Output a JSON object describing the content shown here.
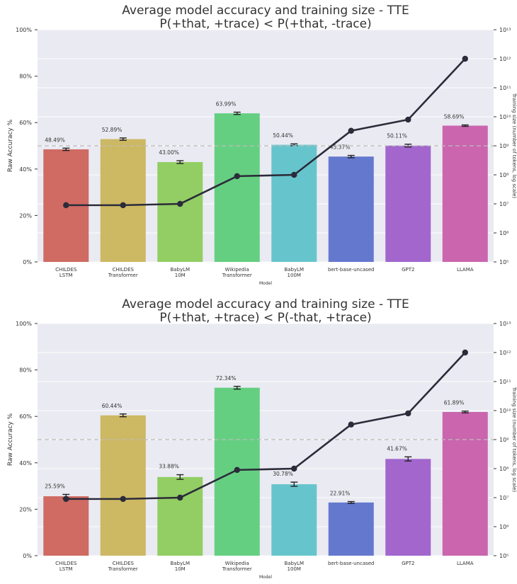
{
  "colors": {
    "plot_background": "#eaeaf2",
    "grid": "#ffffff",
    "line": "#2b2b3a",
    "reference_line": "#bdbdbd",
    "bars": [
      "#cf6b63",
      "#cdb863",
      "#92ce63",
      "#65cf81",
      "#66c5cc",
      "#6478ce",
      "#a266cd",
      "#ca65ae"
    ]
  },
  "chart_data": [
    {
      "type": "bar",
      "title": "Average model accuracy and training size - TTE",
      "subtitle": "P(+that, +trace) < P(+that, -trace)",
      "xlabel": "Model",
      "ylabel": "Raw Accuracy %",
      "y2label": "Training size (number of tokens, log scale)",
      "y2scale": "log",
      "ylim": [
        0,
        100
      ],
      "y2lim": [
        100000,
        10000000000000
      ],
      "yticks": [
        "0%",
        "20%",
        "40%",
        "60%",
        "80%",
        "100%"
      ],
      "y2ticks": [
        "10⁵",
        "10⁶",
        "10⁷",
        "10⁸",
        "10⁹",
        "10¹⁰",
        "10¹¹",
        "10¹²",
        "10¹³"
      ],
      "grid": true,
      "reference_line": 50,
      "categories": [
        [
          "CHILDES",
          "LSTM"
        ],
        [
          "CHILDES",
          "Transformer"
        ],
        [
          "BabyLM",
          "10M"
        ],
        [
          "Wikipedia",
          "Transformer"
        ],
        [
          "BabyLM",
          "100M"
        ],
        [
          "bert-base-uncased"
        ],
        [
          "GPT2"
        ],
        [
          "LLAMA"
        ]
      ],
      "accuracy_values": [
        48.49,
        52.89,
        43.0,
        63.99,
        50.44,
        45.37,
        50.11,
        58.69
      ],
      "accuracy_labels": [
        "48.49%",
        "52.89%",
        "43.00%",
        "63.99%",
        "50.44%",
        "45.37%",
        "50.11%",
        "58.69%"
      ],
      "error_bars": [
        0.5,
        0.5,
        0.6,
        0.5,
        0.4,
        0.5,
        0.6,
        0.3
      ],
      "training_size": [
        9000000,
        9000000,
        10000000,
        90000000,
        100000000,
        3300000000,
        8000000000,
        1000000000000
      ]
    },
    {
      "type": "bar",
      "title": "Average model accuracy and training size - TTE",
      "subtitle": "P(+that, +trace) < P(-that, +trace)",
      "xlabel": "Model",
      "ylabel": "Raw Accuracy %",
      "y2label": "Training size (number of tokens, log scale)",
      "y2scale": "log",
      "ylim": [
        0,
        100
      ],
      "y2lim": [
        100000,
        10000000000000
      ],
      "yticks": [
        "0%",
        "20%",
        "40%",
        "60%",
        "80%",
        "100%"
      ],
      "y2ticks": [
        "10⁵",
        "10⁶",
        "10⁷",
        "10⁸",
        "10⁹",
        "10¹⁰",
        "10¹¹",
        "10¹²",
        "10¹³"
      ],
      "grid": true,
      "reference_line": 50,
      "categories": [
        [
          "CHILDES",
          "LSTM"
        ],
        [
          "CHILDES",
          "Transformer"
        ],
        [
          "BabyLM",
          "10M"
        ],
        [
          "Wikipedia",
          "Transformer"
        ],
        [
          "BabyLM",
          "100M"
        ],
        [
          "bert-base-uncased"
        ],
        [
          "GPT2"
        ],
        [
          "LLAMA"
        ]
      ],
      "accuracy_values": [
        25.59,
        60.44,
        33.88,
        72.34,
        30.78,
        22.91,
        41.67,
        61.89
      ],
      "accuracy_labels": [
        "25.59%",
        "60.44%",
        "33.88%",
        "72.34%",
        "30.78%",
        "22.91%",
        "41.67%",
        "61.89%"
      ],
      "error_bars": [
        0.8,
        0.6,
        1.0,
        0.6,
        0.9,
        0.4,
        0.9,
        0.4
      ],
      "training_size": [
        9000000,
        9000000,
        10000000,
        90000000,
        100000000,
        3300000000,
        8000000000,
        1000000000000
      ]
    }
  ]
}
